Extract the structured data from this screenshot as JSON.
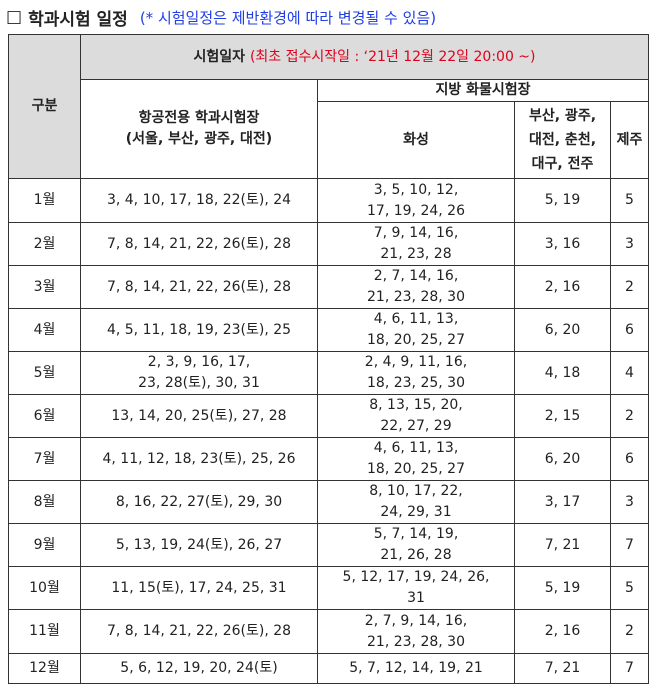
{
  "heading": {
    "box_glyph": "□",
    "title": "학과시험 일정",
    "note": "(* 시험일정은 제반환경에 따라 변경될 수 있음)"
  },
  "table": {
    "col_gubun": "구분",
    "exam_date_label": "시험일자",
    "exam_date_note": "(최초 접수시작일 : ‘21년 12월 22일 20:00 ~)",
    "aviation_label_1": "항공전용 학과시험장",
    "aviation_label_2": "(서울, 부산, 광주, 대전)",
    "regional_label": "지방 화물시험장",
    "hwaseong_label": "화성",
    "multi_city_label_1": "부산, 광주,",
    "multi_city_label_2": "대전, 춘천,",
    "multi_city_label_3": "대구, 전주",
    "jeju_label": "제주",
    "rows": [
      {
        "month": "1월",
        "aviation": "3, 4, 10, 17, 18, 22(토), 24",
        "hwaseong": "3, 5, 10, 12,\n17, 19, 24, 26",
        "multi": "5, 19",
        "jeju": "5"
      },
      {
        "month": "2월",
        "aviation": "7, 8, 14, 21, 22, 26(토), 28",
        "hwaseong": "7, 9, 14, 16,\n21, 23, 28",
        "multi": "3, 16",
        "jeju": "3"
      },
      {
        "month": "3월",
        "aviation": "7, 8, 14, 21, 22, 26(토), 28",
        "hwaseong": "2, 7, 14, 16,\n21, 23, 28, 30",
        "multi": "2, 16",
        "jeju": "2"
      },
      {
        "month": "4월",
        "aviation": "4, 5, 11, 18, 19, 23(토), 25",
        "hwaseong": "4, 6, 11, 13,\n18, 20, 25, 27",
        "multi": "6, 20",
        "jeju": "6"
      },
      {
        "month": "5월",
        "aviation": "2, 3, 9, 16, 17,\n23, 28(토), 30, 31",
        "hwaseong": "2, 4, 9, 11, 16,\n18, 23, 25, 30",
        "multi": "4, 18",
        "jeju": "4"
      },
      {
        "month": "6월",
        "aviation": "13, 14, 20, 25(토), 27, 28",
        "hwaseong": "8, 13, 15, 20,\n22, 27, 29",
        "multi": "2, 15",
        "jeju": "2"
      },
      {
        "month": "7월",
        "aviation": "4, 11, 12, 18, 23(토), 25, 26",
        "hwaseong": "4, 6, 11, 13,\n18, 20, 25, 27",
        "multi": "6, 20",
        "jeju": "6"
      },
      {
        "month": "8월",
        "aviation": "8, 16, 22, 27(토), 29, 30",
        "hwaseong": "8, 10, 17, 22,\n24, 29, 31",
        "multi": "3, 17",
        "jeju": "3"
      },
      {
        "month": "9월",
        "aviation": "5, 13, 19, 24(토), 26, 27",
        "hwaseong": "5, 7, 14, 19,\n21, 26, 28",
        "multi": "7, 21",
        "jeju": "7"
      },
      {
        "month": "10월",
        "aviation": "11, 15(토), 17, 24, 25, 31",
        "hwaseong": "5, 12, 17, 19, 24, 26,\n31",
        "multi": "5, 19",
        "jeju": "5"
      },
      {
        "month": "11월",
        "aviation": "7, 8, 14, 21, 22, 26(토), 28",
        "hwaseong": "2, 7, 9, 14, 16,\n21, 23, 28, 30",
        "multi": "2, 16",
        "jeju": "2"
      },
      {
        "month": "12월",
        "aviation": "5, 6, 12, 19, 20, 24(토)",
        "hwaseong": "5, 7, 12, 14, 19, 21",
        "multi": "7, 21",
        "jeju": "7"
      }
    ]
  }
}
